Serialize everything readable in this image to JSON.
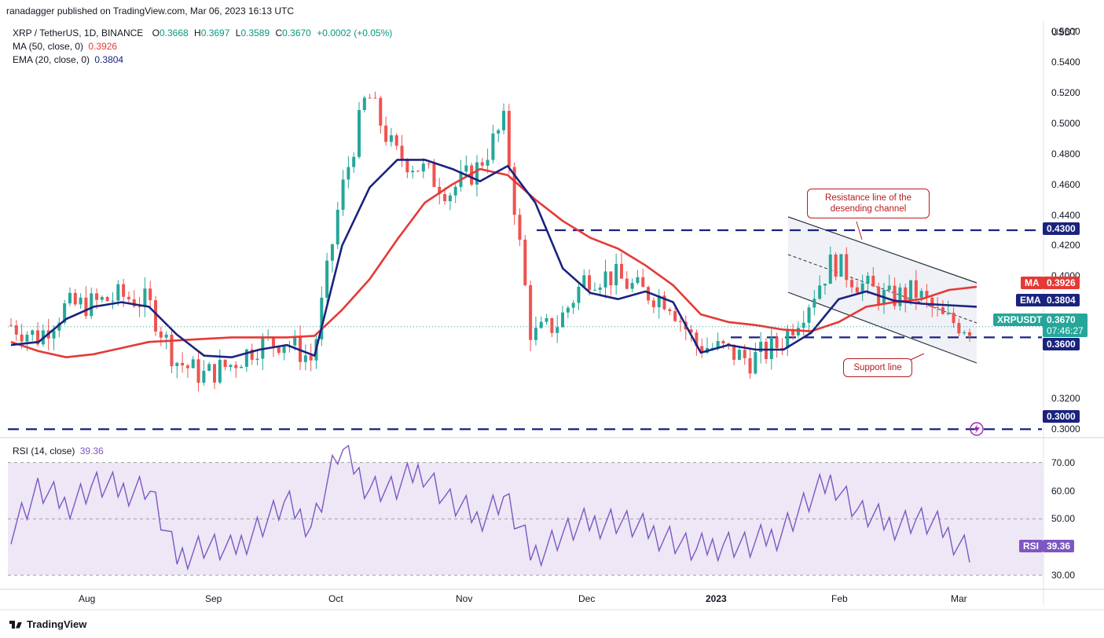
{
  "header": {
    "credit": "ranadagger published on TradingView.com, Mar 06, 2023 16:13 UTC",
    "symbol": "XRP / TetherUS, 1D, BINANCE",
    "ohlc": {
      "o_label": "O",
      "o": "0.3668",
      "h_label": "H",
      "h": "0.3697",
      "l_label": "L",
      "l": "0.3589",
      "c_label": "C",
      "c": "0.3670",
      "chg": "+0.0002 (+0.05%)"
    },
    "ma_label": "MA (50, close, 0)",
    "ma_value": "0.3926",
    "ema_label": "EMA (20, close, 0)",
    "ema_value": "0.3804",
    "rsi_label": "RSI (14, close)",
    "rsi_value": "39.36"
  },
  "price_axis": {
    "unit": "USDT",
    "ticks": [
      "0.5600",
      "0.5400",
      "0.5200",
      "0.5000",
      "0.4800",
      "0.4600",
      "0.4400",
      "0.4200",
      "0.4000",
      "0.3200",
      "0.3000"
    ]
  },
  "price_tags": {
    "resistance": "0.4300",
    "ma_tag": "MA",
    "ma_value": "0.3926",
    "ema_tag": "EMA",
    "ema_value": "0.3804",
    "symbol_tag": "XRPUSDT",
    "last": "0.3670",
    "countdown": "07:46:27",
    "support": "0.3600",
    "low": "0.3000"
  },
  "rsi_axis": {
    "ticks": [
      "70.00",
      "60.00",
      "50.00",
      "30.00"
    ],
    "tag": "RSI",
    "value": "39.36"
  },
  "time_axis": [
    "Aug",
    "Sep",
    "Oct",
    "Nov",
    "Dec",
    "2023",
    "Feb",
    "Mar"
  ],
  "annotations": {
    "resistance_note": "Resistance line of the desending channel",
    "support_note": "Support line"
  },
  "footer": {
    "brand": "TradingView"
  },
  "colors": {
    "up": "#26a69a",
    "down": "#ef5350",
    "ema": "#1a237e",
    "ma": "#e53935",
    "hline": "#1a237e",
    "rsi": "#7e57c2",
    "rsi_band": "#ede7f6",
    "annot": "#b71c1c"
  },
  "chart_data": [
    {
      "type": "candlestick",
      "title": "XRP / TetherUS, 1D, BINANCE",
      "y_unit": "USDT",
      "ylim": [
        0.295,
        0.565
      ],
      "x_ticks": [
        "Aug",
        "Sep",
        "Oct",
        "Nov",
        "Dec",
        "2023",
        "Feb",
        "Mar"
      ],
      "horizontal_lines": [
        0.43,
        0.36,
        0.3
      ],
      "series": [
        {
          "name": "EMA (20, close, 0)",
          "last": 0.3804,
          "values": [
            0.355,
            0.357,
            0.372,
            0.38,
            0.383,
            0.38,
            0.362,
            0.348,
            0.347,
            0.352,
            0.355,
            0.348,
            0.42,
            0.458,
            0.476,
            0.476,
            0.47,
            0.462,
            0.472,
            0.448,
            0.405,
            0.389,
            0.385,
            0.39,
            0.383,
            0.35,
            0.355,
            0.352,
            0.352,
            0.363,
            0.385,
            0.39,
            0.384,
            0.382,
            0.381,
            0.38
          ]
        },
        {
          "name": "MA (50, close, 0)",
          "last": 0.3926,
          "values": [
            0.357,
            0.351,
            0.347,
            0.349,
            0.353,
            0.357,
            0.358,
            0.359,
            0.36,
            0.36,
            0.36,
            0.361,
            0.378,
            0.398,
            0.424,
            0.448,
            0.46,
            0.47,
            0.466,
            0.45,
            0.436,
            0.425,
            0.418,
            0.407,
            0.394,
            0.375,
            0.37,
            0.368,
            0.365,
            0.364,
            0.37,
            0.38,
            0.383,
            0.385,
            0.391,
            0.393
          ]
        }
      ],
      "close": [
        0.368,
        0.36,
        0.38,
        0.382,
        0.387,
        0.383,
        0.345,
        0.335,
        0.342,
        0.355,
        0.358,
        0.345,
        0.45,
        0.52,
        0.48,
        0.47,
        0.455,
        0.47,
        0.5,
        0.36,
        0.37,
        0.4,
        0.4,
        0.39,
        0.385,
        0.355,
        0.352,
        0.345,
        0.355,
        0.38,
        0.41,
        0.395,
        0.385,
        0.39,
        0.372,
        0.367
      ]
    },
    {
      "type": "line",
      "title": "RSI (14, close)",
      "ylim": [
        25,
        78
      ],
      "y_ticks": [
        70,
        60,
        50,
        30
      ],
      "series": [
        {
          "name": "RSI (14, close)",
          "last": 39.36,
          "values": [
            47,
            60,
            55,
            62,
            60,
            62,
            36,
            41,
            38,
            47,
            55,
            48,
            75,
            62,
            60,
            68,
            56,
            50,
            58,
            37,
            44,
            48,
            50,
            46,
            44,
            38,
            42,
            40,
            45,
            55,
            64,
            52,
            48,
            50,
            46,
            39.36
          ]
        }
      ]
    }
  ]
}
